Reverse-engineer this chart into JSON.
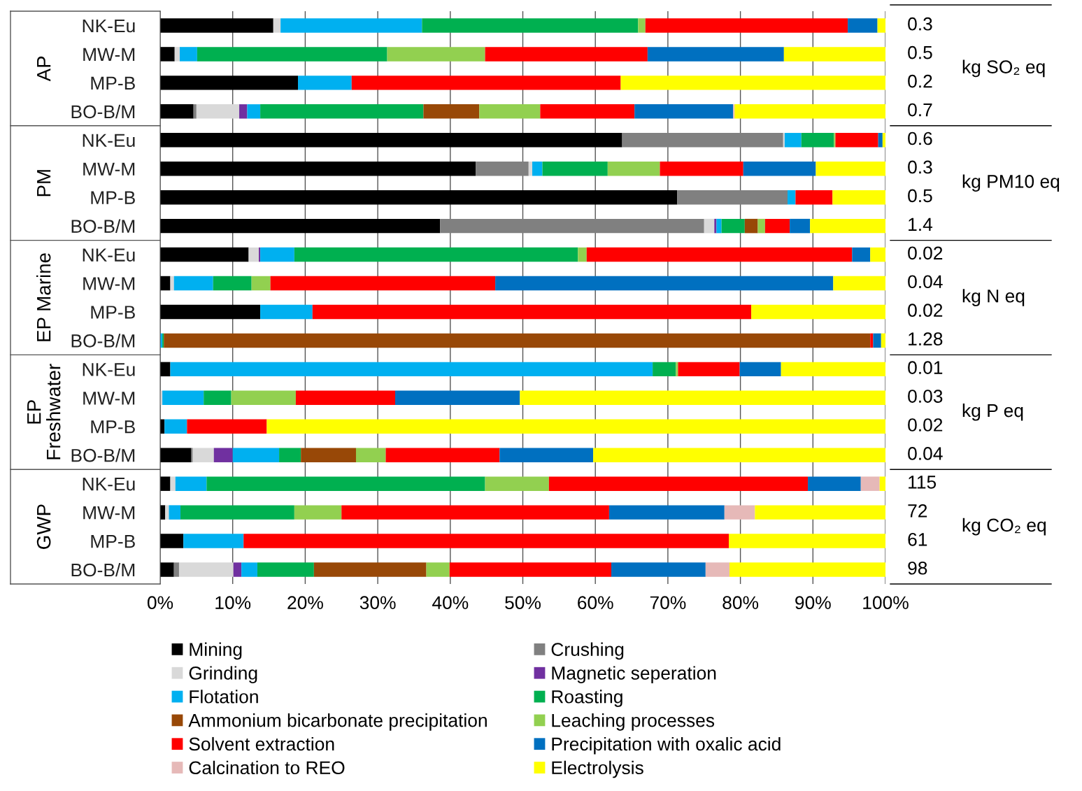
{
  "chart_data": {
    "type": "bar",
    "orientation": "horizontal",
    "stacked": true,
    "categories": [
      "NK-Eu",
      "MW-M",
      "MP-B",
      "BO-B/M",
      "NK-Eu",
      "MW-M",
      "MP-B",
      "BO-B/M",
      "NK-Eu",
      "MW-M",
      "MP-B",
      "BO-B/M",
      "NK-Eu",
      "MW-M",
      "MP-B",
      "BO-B/M",
      "NK-Eu",
      "MW-M",
      "MP-B",
      "BO-B/M"
    ],
    "series": [
      {
        "name": "Mining",
        "color": "#000000",
        "values": [
          15.6,
          2.0,
          19.0,
          4.6,
          63.7,
          43.5,
          71.3,
          38.6,
          12.2,
          1.4,
          13.8,
          null,
          1.4,
          null,
          0.6,
          4.3,
          1.4,
          0.7,
          3.2,
          1.9
        ]
      },
      {
        "name": "Crushing",
        "color": "#808080",
        "values": [
          null,
          null,
          null,
          0.4,
          22.2,
          7.3,
          15.2,
          36.4,
          null,
          null,
          null,
          null,
          null,
          null,
          null,
          0.2,
          null,
          null,
          null,
          0.7
        ]
      },
      {
        "name": "Grinding",
        "color": "#d9d9d9",
        "values": [
          1.0,
          0.7,
          null,
          5.9,
          0.2,
          0.5,
          null,
          1.4,
          1.4,
          0.5,
          null,
          null,
          null,
          0.3,
          null,
          2.9,
          0.7,
          0.5,
          null,
          7.5
        ]
      },
      {
        "name": "Magnetic seperation",
        "color": "#7030a0",
        "values": [
          null,
          null,
          null,
          1.1,
          null,
          null,
          null,
          0.3,
          0.2,
          null,
          null,
          null,
          null,
          null,
          null,
          2.6,
          null,
          null,
          null,
          1.1
        ]
      },
      {
        "name": "Flotation",
        "color": "#00b0f0",
        "values": [
          19.5,
          2.4,
          7.4,
          1.8,
          2.3,
          1.4,
          1.1,
          0.7,
          4.7,
          5.4,
          7.2,
          0.3,
          66.5,
          5.7,
          3.1,
          6.4,
          4.3,
          1.6,
          8.3,
          2.2
        ]
      },
      {
        "name": "Roasting",
        "color": "#00b050",
        "values": [
          29.8,
          26.2,
          null,
          22.5,
          4.5,
          9.0,
          null,
          3.2,
          39.1,
          5.3,
          null,
          0.2,
          3.2,
          3.8,
          null,
          3.0,
          38.4,
          15.7,
          null,
          7.8
        ]
      },
      {
        "name": "Ammonium bicarbonate precipitation",
        "color": "#984807",
        "values": [
          null,
          null,
          null,
          7.7,
          null,
          null,
          null,
          1.8,
          null,
          null,
          null,
          97.4,
          null,
          null,
          null,
          7.6,
          null,
          null,
          null,
          15.5
        ]
      },
      {
        "name": "Leaching processes",
        "color": "#92d050",
        "values": [
          1.0,
          13.5,
          null,
          8.4,
          0.2,
          7.2,
          null,
          1.0,
          1.2,
          2.6,
          null,
          null,
          0.3,
          8.9,
          null,
          4.1,
          8.8,
          6.5,
          null,
          3.2
        ]
      },
      {
        "name": "Solvent extraction",
        "color": "#ff0000",
        "values": [
          27.9,
          22.4,
          37.1,
          13.0,
          5.9,
          11.5,
          5.1,
          3.4,
          36.6,
          31.0,
          60.5,
          0.4,
          8.5,
          13.7,
          11.0,
          15.7,
          35.7,
          36.9,
          66.9,
          22.3
        ]
      },
      {
        "name": "Precipitation with oxalic acid",
        "color": "#0070c0",
        "values": [
          4.1,
          18.8,
          null,
          13.6,
          0.6,
          10.0,
          null,
          2.8,
          2.5,
          46.6,
          null,
          1.1,
          5.7,
          17.2,
          null,
          12.9,
          7.3,
          15.9,
          null,
          13.0
        ]
      },
      {
        "name": "Calcination to REO",
        "color": "#e6b9b8",
        "values": [
          null,
          null,
          null,
          0.2,
          null,
          null,
          null,
          null,
          null,
          null,
          null,
          null,
          null,
          null,
          null,
          null,
          2.6,
          4.2,
          null,
          3.3
        ]
      },
      {
        "name": "Electrolysis",
        "color": "#ffff00",
        "values": [
          1.1,
          14.0,
          36.5,
          20.8,
          0.4,
          9.6,
          7.3,
          10.4,
          2.1,
          7.2,
          18.5,
          0.6,
          14.4,
          50.4,
          85.3,
          40.3,
          0.8,
          18.0,
          21.6,
          21.5
        ]
      }
    ],
    "annotations": [
      "AP",
      "PM",
      "EP Marine",
      "EP\nFreshwater",
      "GWP",
      "kg SO₂ eq",
      "kg PM10 eq",
      "kg N eq",
      "kg P eq",
      "kg CO₂ eq",
      "0.3",
      "0.5",
      "0.2",
      "0.7",
      "0.6",
      "0.3",
      "0.5",
      "1.4",
      "0.02",
      "0.04",
      "0.02",
      "1.28",
      "0.01",
      "0.03",
      "0.02",
      "0.04",
      "115",
      "72",
      "61",
      "98"
    ],
    "xlim": [
      0,
      100
    ],
    "xticks": [
      {
        "value": 0,
        "label": "0%"
      },
      {
        "value": 10,
        "label": "10%"
      },
      {
        "value": 20,
        "label": "20%"
      },
      {
        "value": 30,
        "label": "30%"
      },
      {
        "value": 40,
        "label": "40%"
      },
      {
        "value": 50,
        "label": "50%"
      },
      {
        "value": 60,
        "label": "60%"
      },
      {
        "value": 70,
        "label": "70%"
      },
      {
        "value": 80,
        "label": "80%"
      },
      {
        "value": 90,
        "label": "90%"
      },
      {
        "value": 100,
        "label": "100%"
      }
    ],
    "grid": "x",
    "legend": "bottom"
  }
}
